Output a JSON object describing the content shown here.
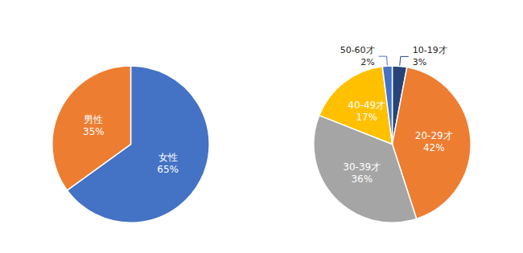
{
  "chart_data": [
    {
      "type": "pie",
      "categories": [
        "女性",
        "男性"
      ],
      "values": [
        65,
        35
      ],
      "value_labels": [
        "65%",
        "35%"
      ],
      "colors": [
        "#4472c4",
        "#ed7d31"
      ],
      "data_labels": true
    },
    {
      "type": "pie",
      "categories": [
        "10-19才",
        "20-29才",
        "30-39才",
        "40-49才",
        "50-60才"
      ],
      "values": [
        3,
        42,
        36,
        17,
        2
      ],
      "value_labels": [
        "3%",
        "42%",
        "36%",
        "17%",
        "2%"
      ],
      "colors": [
        "#264478",
        "#ed7d31",
        "#a5a5a5",
        "#ffc000",
        "#4472c4"
      ],
      "data_labels": true
    }
  ]
}
